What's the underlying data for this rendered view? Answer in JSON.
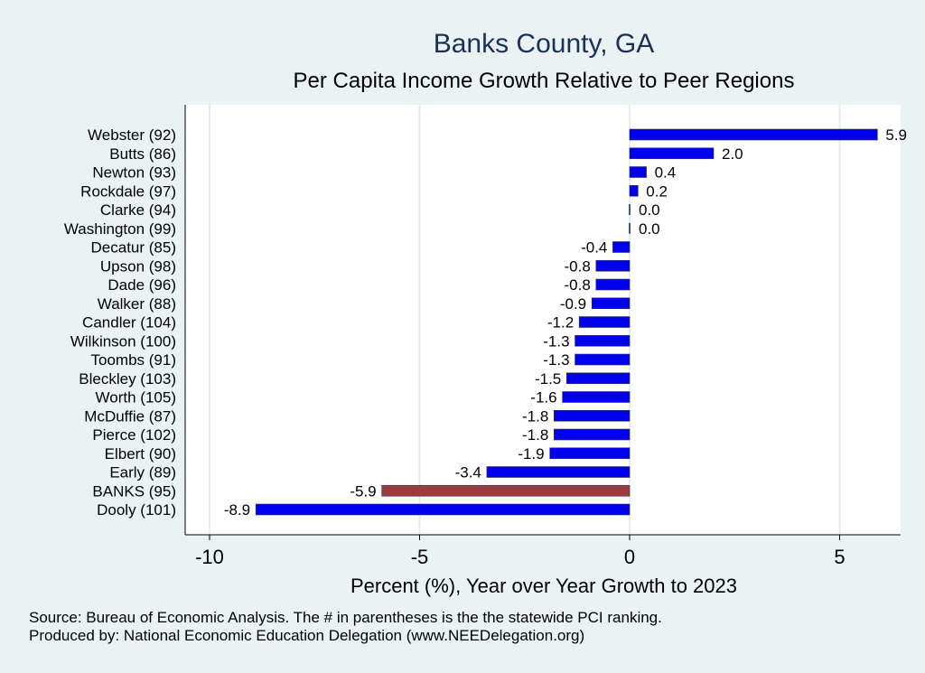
{
  "chart_data": {
    "type": "bar",
    "orientation": "horizontal",
    "title": "Banks County, GA",
    "subtitle": "Per Capita Income Growth Relative to Peer Regions",
    "xlabel": "Percent (%), Year over Year Growth to 2023",
    "xlim": [
      -10.5,
      6.6
    ],
    "xticks": [
      -10,
      -5,
      0,
      5
    ],
    "grid": true,
    "categories": [
      "Webster (92)",
      "Butts (86)",
      "Newton (93)",
      "Rockdale (97)",
      "Clarke (94)",
      "Washington (99)",
      "Decatur (85)",
      "Upson (98)",
      "Dade (96)",
      "Walker (88)",
      "Candler (104)",
      "Wilkinson (100)",
      "Toombs (91)",
      "Bleckley (103)",
      "Worth (105)",
      "McDuffie (87)",
      "Pierce (102)",
      "Elbert (90)",
      "Early (89)",
      "BANKS (95)",
      "Dooly (101)"
    ],
    "values": [
      5.9,
      2.0,
      0.4,
      0.2,
      0.0,
      0.0,
      -0.4,
      -0.8,
      -0.8,
      -0.9,
      -1.2,
      -1.3,
      -1.3,
      -1.5,
      -1.6,
      -1.8,
      -1.8,
      -1.9,
      -3.4,
      -5.9,
      -8.9
    ],
    "labels": [
      "5.9",
      "2.0",
      "0.4",
      "0.2",
      "0.0",
      "0.0",
      "-0.4",
      "-0.8",
      "-0.8",
      "-0.9",
      "-1.2",
      "-1.3",
      "-1.3",
      "-1.5",
      "-1.6",
      "-1.8",
      "-1.8",
      "-1.9",
      "-3.4",
      "-5.9",
      "-8.9"
    ],
    "highlight_index": 19,
    "colors": {
      "bar": "#0000ee",
      "highlight": "#9c3b3e",
      "background": "#eaf2f3",
      "plot_bg": "#ffffff",
      "grid": "#e3ecee",
      "title": "#1a2f5a"
    }
  },
  "notes": {
    "source": "Source: Bureau of Economic Analysis. The # in parentheses is the the statewide PCI ranking.",
    "produced_by": "Produced by: National Economic Education Delegation (www.NEEDelegation.org)"
  }
}
